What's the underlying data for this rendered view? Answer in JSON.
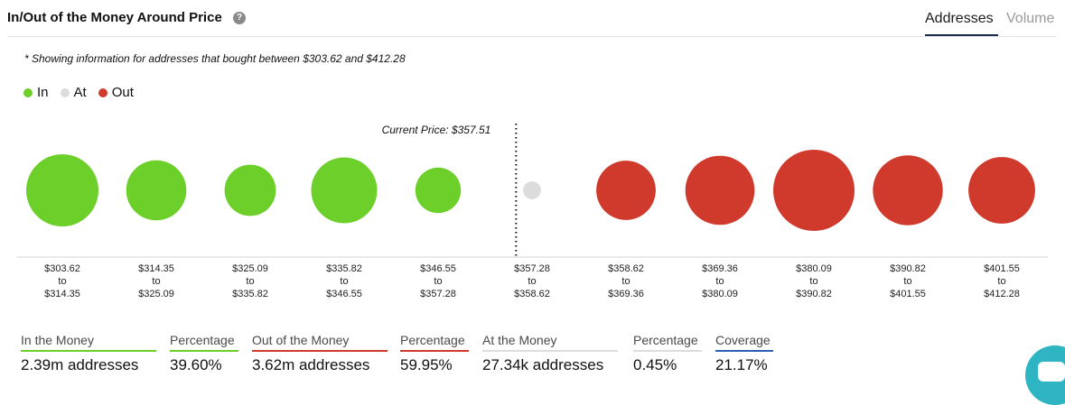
{
  "header": {
    "title": "In/Out of the Money Around Price",
    "help": "?"
  },
  "tabs": [
    {
      "label": "Addresses",
      "active": true
    },
    {
      "label": "Volume",
      "active": false
    }
  ],
  "note": "* Showing information for addresses that bought between $303.62 and $412.28",
  "legend": [
    {
      "label": "In",
      "color": "#6ccf2a"
    },
    {
      "label": "At",
      "color": "#dcdcdc"
    },
    {
      "label": "Out",
      "color": "#cf3a2d"
    }
  ],
  "chart_data": {
    "type": "bubble",
    "current_price_label": "Current Price: $357.51",
    "marker_after_index": 4,
    "bubbles": [
      {
        "from": "$303.62",
        "to": "$314.35",
        "status": "In",
        "size": 0.89
      },
      {
        "from": "$314.35",
        "to": "$325.09",
        "status": "In",
        "size": 0.74
      },
      {
        "from": "$325.09",
        "to": "$335.82",
        "status": "In",
        "size": 0.63
      },
      {
        "from": "$335.82",
        "to": "$346.55",
        "status": "In",
        "size": 0.81
      },
      {
        "from": "$346.55",
        "to": "$357.28",
        "status": "In",
        "size": 0.56
      },
      {
        "from": "$357.28",
        "to": "$358.62",
        "status": "At",
        "size": 0.22
      },
      {
        "from": "$358.62",
        "to": "$369.36",
        "status": "Out",
        "size": 0.73
      },
      {
        "from": "$369.36",
        "to": "$380.09",
        "status": "Out",
        "size": 0.85
      },
      {
        "from": "$380.09",
        "to": "$390.82",
        "status": "Out",
        "size": 1.0
      },
      {
        "from": "$390.82",
        "to": "$401.55",
        "status": "Out",
        "size": 0.86
      },
      {
        "from": "$401.55",
        "to": "$412.28",
        "status": "Out",
        "size": 0.82
      }
    ],
    "connector": "to",
    "colors": {
      "In": "#6ccf2a",
      "At": "#dcdcdc",
      "Out": "#cf3a2d"
    }
  },
  "stats": [
    {
      "label": "In the Money",
      "value": "2.39m addresses",
      "underline": "#6ccf2a"
    },
    {
      "label": "Percentage",
      "value": "39.60%",
      "underline": "#6ccf2a"
    },
    {
      "label": "Out of the Money",
      "value": "3.62m addresses",
      "underline": "#cf3a2d"
    },
    {
      "label": "Percentage",
      "value": "59.95%",
      "underline": "#cf3a2d"
    },
    {
      "label": "At the Money",
      "value": "27.34k addresses",
      "underline": "#dcdcdc"
    },
    {
      "label": "Percentage",
      "value": "0.45%",
      "underline": "#dcdcdc"
    },
    {
      "label": "Coverage",
      "value": "21.17%",
      "underline": "#2c5fb3"
    }
  ]
}
